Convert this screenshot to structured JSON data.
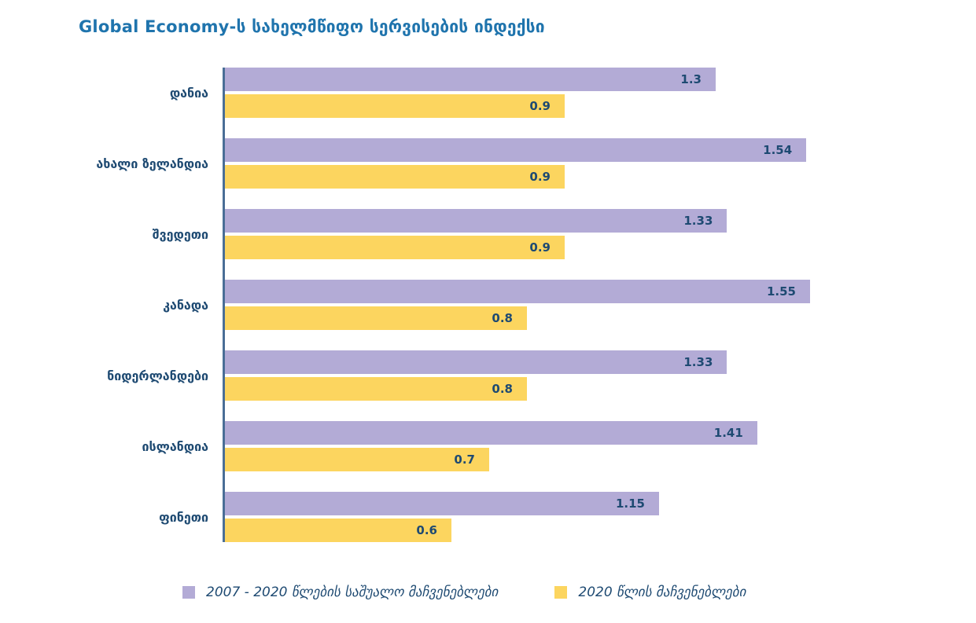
{
  "title": "Global Economy-ს სახელმწიფო სერვისების ინდექსი",
  "colors": {
    "title": "#1f74ad",
    "category_label": "#1e4a72",
    "value_label": "#1e4a72",
    "axis": "#4a6e96",
    "series_avg": "#b3abd6",
    "series_2020": "#fcd55f",
    "background": "#ffffff"
  },
  "legend": [
    {
      "label": "2007 - 2020 წლების საშუალო მაჩვენებლები",
      "color": "#b3abd6"
    },
    {
      "label": "2020 წლის მაჩვენებლები",
      "color": "#fcd55f"
    }
  ],
  "chart_data": {
    "type": "bar",
    "orientation": "horizontal",
    "title": "Global Economy-ს სახელმწიფო სერვისების ინდექსი",
    "categories": [
      "დანია",
      "ახალი ზელანდია",
      "შვედეთი",
      "კანადა",
      "ნიდერლანდები",
      "ისლანდია",
      "ფინეთი"
    ],
    "series": [
      {
        "name": "2007 - 2020 წლების საშუალო მაჩვენებლები",
        "color": "#b3abd6",
        "values": [
          1.3,
          1.54,
          1.33,
          1.55,
          1.33,
          1.41,
          1.15
        ]
      },
      {
        "name": "2020 წლის მაჩვენებლები",
        "color": "#fcd55f",
        "values": [
          0.9,
          0.9,
          0.9,
          0.8,
          0.8,
          0.7,
          0.6
        ]
      }
    ],
    "xlabel": "",
    "ylabel": "",
    "xlim": [
      0,
      2
    ],
    "value_labels": true,
    "grid": false,
    "legend_position": "bottom"
  }
}
